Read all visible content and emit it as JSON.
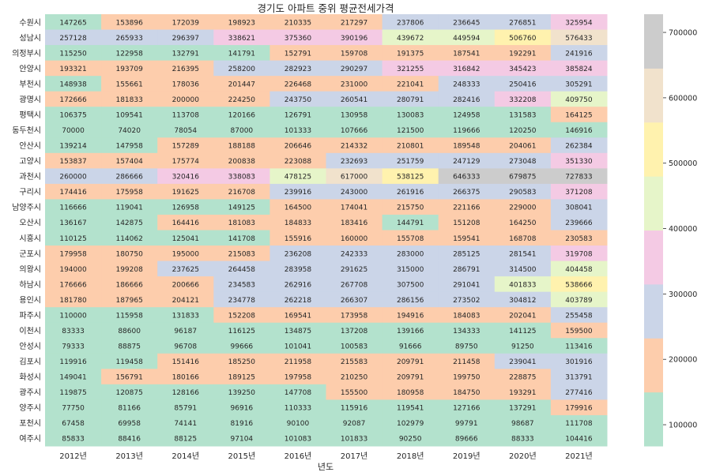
{
  "chart_data": {
    "type": "heatmap",
    "title": "경기도 아파트 중위 평균전세가격",
    "xlabel": "년도",
    "ylabel": "",
    "x": [
      "2012년",
      "2013년",
      "2014년",
      "2015년",
      "2016년",
      "2017년",
      "2018년",
      "2019년",
      "2020년",
      "2021년"
    ],
    "y": [
      "수원시",
      "성남시",
      "의정부시",
      "안양시",
      "부천시",
      "광명시",
      "평택시",
      "동두천시",
      "안산시",
      "고양시",
      "과천시",
      "구리시",
      "남양주시",
      "오산시",
      "시흥시",
      "군포시",
      "의왕시",
      "하남시",
      "용인시",
      "파주시",
      "이천시",
      "안성시",
      "김포시",
      "화성시",
      "광주시",
      "양주시",
      "포천시",
      "여주시"
    ],
    "values": [
      [
        147265,
        153896,
        172039,
        198923,
        210335,
        217297,
        237806,
        236645,
        276851,
        325954
      ],
      [
        257128,
        265933,
        296397,
        338621,
        375360,
        390196,
        439672,
        449594,
        506760,
        576433
      ],
      [
        115250,
        122958,
        132791,
        141791,
        152791,
        159708,
        191375,
        187541,
        192291,
        241916
      ],
      [
        193321,
        193709,
        216395,
        258200,
        282923,
        290297,
        321255,
        316842,
        345423,
        385824
      ],
      [
        148938,
        155661,
        178036,
        201447,
        226468,
        231000,
        221041,
        248333,
        250416,
        305291
      ],
      [
        172666,
        181833,
        200000,
        224250,
        243750,
        260541,
        280791,
        282416,
        332208,
        409750
      ],
      [
        106375,
        109541,
        113708,
        120166,
        126791,
        130958,
        130083,
        124958,
        131583,
        164125
      ],
      [
        70000,
        74020,
        78054,
        87000,
        101333,
        107666,
        121500,
        119666,
        120250,
        146916
      ],
      [
        139214,
        147958,
        157289,
        188188,
        206646,
        214332,
        210801,
        189548,
        204061,
        262384
      ],
      [
        153837,
        157404,
        175774,
        200838,
        223088,
        232693,
        251759,
        247129,
        273048,
        351330
      ],
      [
        260000,
        286666,
        320416,
        338083,
        478125,
        617000,
        538125,
        646333,
        679875,
        727833
      ],
      [
        174416,
        175958,
        191625,
        216708,
        239916,
        243000,
        261916,
        266375,
        290583,
        371208
      ],
      [
        116666,
        119041,
        126958,
        149125,
        164500,
        174041,
        215750,
        221166,
        229000,
        308041
      ],
      [
        136167,
        142875,
        164416,
        181083,
        184833,
        183416,
        144791,
        151208,
        164250,
        239666
      ],
      [
        110125,
        114062,
        125041,
        141708,
        155916,
        160000,
        155708,
        159541,
        168708,
        230583
      ],
      [
        179958,
        180750,
        195000,
        215083,
        236208,
        242333,
        283000,
        285125,
        281541,
        319708
      ],
      [
        194000,
        199208,
        237625,
        264458,
        283958,
        291625,
        315000,
        286791,
        314500,
        404458
      ],
      [
        176666,
        186666,
        200666,
        234583,
        262916,
        267708,
        307500,
        291041,
        401833,
        538666
      ],
      [
        181780,
        187965,
        204121,
        234778,
        262218,
        266307,
        286156,
        273502,
        304812,
        403789
      ],
      [
        110000,
        115958,
        131833,
        152208,
        169541,
        173958,
        194916,
        184083,
        202041,
        255458
      ],
      [
        83333,
        88600,
        96187,
        116125,
        134875,
        137208,
        139166,
        134333,
        141125,
        159500
      ],
      [
        79333,
        88875,
        96708,
        99666,
        101041,
        100583,
        91666,
        89750,
        91250,
        113416
      ],
      [
        119916,
        119458,
        151416,
        185250,
        211958,
        215583,
        209791,
        211458,
        239041,
        301916
      ],
      [
        149041,
        156791,
        180166,
        189125,
        197958,
        210250,
        209791,
        199750,
        228875,
        313791
      ],
      [
        119875,
        120875,
        128166,
        139250,
        147708,
        155500,
        180958,
        184750,
        193291,
        277416
      ],
      [
        77750,
        81166,
        85791,
        96916,
        110333,
        115916,
        119541,
        127166,
        137291,
        179916
      ],
      [
        67458,
        69958,
        74141,
        81916,
        90100,
        92087,
        102979,
        99791,
        98687,
        111708
      ],
      [
        85833,
        88416,
        88125,
        97104,
        101083,
        101833,
        90250,
        89666,
        88333,
        104416
      ]
    ],
    "colorbar": {
      "ticks": [
        100000,
        200000,
        300000,
        400000,
        500000,
        600000,
        700000
      ],
      "colors": [
        "#b3e2cd",
        "#fdcdac",
        "#cbd5e8",
        "#f4cae4",
        "#e6f5c9",
        "#fff2ae",
        "#f1e2cc",
        "#cccccc"
      ],
      "min": 67458,
      "max": 727833
    }
  }
}
